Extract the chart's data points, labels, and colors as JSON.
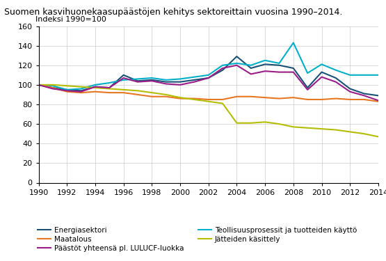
{
  "title": "Suomen kasvihuonekaasupäästöjen kehitys sektoreittain vuosina 1990–2014.",
  "ylabel": "Indeksi 1990=100",
  "years": [
    1990,
    1991,
    1992,
    1993,
    1994,
    1995,
    1996,
    1997,
    1998,
    1999,
    2000,
    2001,
    2002,
    2003,
    2004,
    2005,
    2006,
    2007,
    2008,
    2009,
    2010,
    2011,
    2012,
    2013,
    2014
  ],
  "series_order": [
    "Energiasektori",
    "Teollisuusprosessit ja tuotteiden käyttö",
    "Maatalous",
    "Jätteiden käsittely",
    "Päästöt yhteensä pl. LULUCF-luokka"
  ],
  "series": {
    "Energiasektori": {
      "color": "#1a5276",
      "values": [
        100,
        97,
        95,
        94,
        98,
        97,
        110,
        104,
        105,
        103,
        103,
        105,
        107,
        115,
        129,
        117,
        121,
        120,
        117,
        97,
        113,
        107,
        96,
        91,
        89
      ]
    },
    "Teollisuusprosessit ja tuotteiden käyttö": {
      "color": "#00b0c8",
      "values": [
        100,
        99,
        95,
        96,
        100,
        102,
        105,
        106,
        107,
        105,
        106,
        108,
        110,
        120,
        122,
        120,
        125,
        122,
        143,
        112,
        121,
        115,
        110,
        110,
        110
      ]
    },
    "Maatalous": {
      "color": "#e87722",
      "values": [
        100,
        97,
        93,
        92,
        93,
        92,
        92,
        90,
        88,
        88,
        86,
        86,
        85,
        85,
        88,
        88,
        87,
        86,
        87,
        85,
        85,
        86,
        85,
        85,
        83
      ]
    },
    "Jätteiden käsittely": {
      "color": "#b5bd00",
      "values": [
        100,
        100,
        99,
        98,
        97,
        96,
        95,
        94,
        92,
        90,
        87,
        85,
        83,
        81,
        61,
        61,
        62,
        60,
        57,
        56,
        55,
        54,
        52,
        50,
        47
      ]
    },
    "Päästöt yhteensä pl. LULUCF-luokka": {
      "color": "#9b1d8a",
      "values": [
        100,
        96,
        94,
        93,
        98,
        97,
        107,
        103,
        104,
        101,
        100,
        103,
        107,
        117,
        120,
        111,
        114,
        113,
        113,
        95,
        108,
        103,
        93,
        89,
        84
      ]
    }
  },
  "ylim": [
    0,
    160
  ],
  "yticks": [
    0,
    20,
    40,
    60,
    80,
    100,
    120,
    140,
    160
  ],
  "xticks": [
    1990,
    1992,
    1994,
    1996,
    1998,
    2000,
    2002,
    2004,
    2006,
    2008,
    2010,
    2012,
    2014
  ],
  "grid_color": "#cccccc",
  "title_fontsize": 9,
  "label_fontsize": 8,
  "legend_fontsize": 7.5,
  "linewidth": 1.5,
  "legend_order": [
    0,
    2,
    4,
    1,
    3
  ]
}
